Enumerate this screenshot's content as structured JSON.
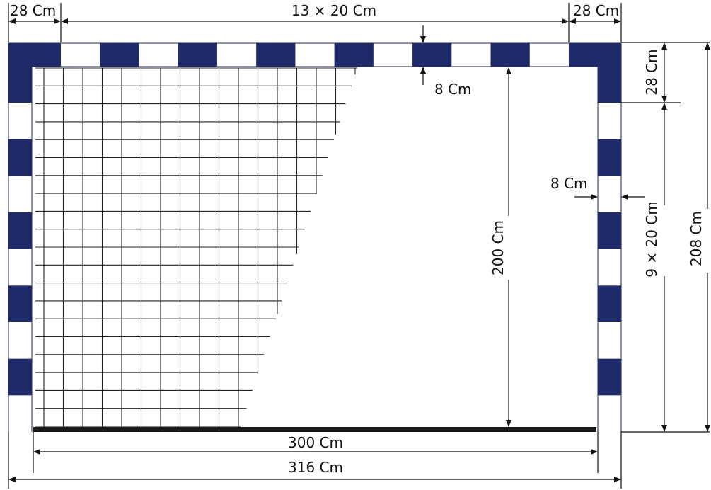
{
  "labels": {
    "corner_top_left": "28 Cm",
    "segments_top": "13 × 20 Cm",
    "corner_top_right": "28 Cm",
    "crossbar_thickness": "8 Cm",
    "corner_right_vertical": "28 Cm",
    "post_thickness": "8 Cm",
    "inner_height": "200 Cm",
    "segments_right": "9 × 20 Cm",
    "outer_height": "208 Cm",
    "inner_width": "300 Cm",
    "outer_width": "316 Cm"
  },
  "colors": {
    "stripe": "#1f2a6b",
    "white": "#ffffff",
    "ground_bar": "#1a1a1a",
    "ink": "#111111"
  }
}
